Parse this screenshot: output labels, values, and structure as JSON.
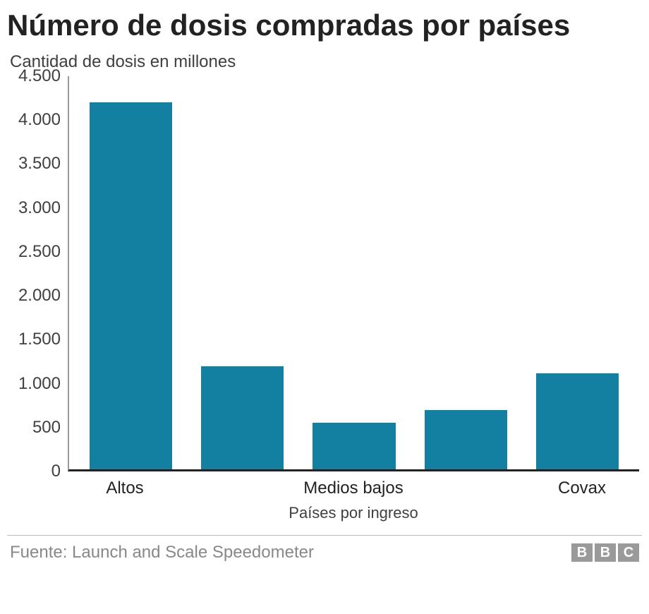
{
  "title": "Número de dosis compradas por países",
  "subtitle": "Cantidad de dosis en millones",
  "chart": {
    "type": "bar",
    "categories": [
      "Altos",
      "",
      "Medios bajos",
      "",
      "Covax"
    ],
    "values": [
      4200,
      1180,
      530,
      680,
      1100
    ],
    "bar_color": "#1380a1",
    "ylim": [
      0,
      4500
    ],
    "ytick_step": 500,
    "yticks": [
      "0",
      "500",
      "1.000",
      "1.500",
      "2.000",
      "2.500",
      "3.000",
      "3.500",
      "4.000",
      "4.500"
    ],
    "x_axis_title": "Países por ingreso",
    "background_color": "#ffffff",
    "axis_color": "#222222",
    "yaxis_line_color": "#999999",
    "title_fontsize": 42,
    "subtitle_fontsize": 24,
    "label_fontsize": 24,
    "bar_width_ratio": 0.74
  },
  "footer": {
    "source_text": "Fuente: Launch and Scale Speedometer",
    "logo_letters": [
      "B",
      "B",
      "C"
    ],
    "logo_bg": "#9a9a9a",
    "logo_fg": "#ffffff",
    "text_color": "#888888"
  }
}
